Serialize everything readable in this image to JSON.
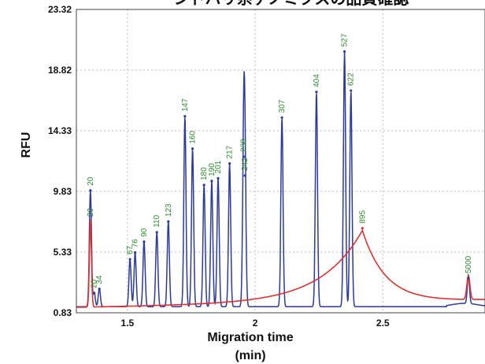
{
  "chart_data": {
    "type": "line",
    "title": "シドバリ系ゲノミクスの品質確認",
    "xlabel": "Migration time",
    "xlabel_unit": "(min)",
    "ylabel": "RFU",
    "xlim": [
      1.3,
      2.9
    ],
    "ylim": [
      0.83,
      23.32
    ],
    "x_ticks": [
      1.5,
      2,
      2.5
    ],
    "y_ticks": [
      0.83,
      5.33,
      9.83,
      14.33,
      18.82,
      23.32
    ],
    "y_tick_labels": [
      "0.83",
      "5.33",
      "9.83",
      "14.33",
      "18.82",
      "23.32"
    ],
    "x_tick_labels": [
      "1.5",
      "2",
      "2.5"
    ],
    "grid": true,
    "series": [
      {
        "name": "",
        "color": "#2b3a9b",
        "peaks": [
          {
            "x": 1.355,
            "y": 9.9,
            "label": "20"
          },
          {
            "x": 1.37,
            "y": 2.3,
            "label": "20"
          },
          {
            "x": 1.39,
            "y": 2.6,
            "label": "34"
          },
          {
            "x": 1.51,
            "y": 4.8,
            "label": "67"
          },
          {
            "x": 1.53,
            "y": 5.3,
            "label": "76"
          },
          {
            "x": 1.565,
            "y": 6.1,
            "label": "90"
          },
          {
            "x": 1.615,
            "y": 6.8,
            "label": "110"
          },
          {
            "x": 1.66,
            "y": 7.6,
            "label": "123"
          },
          {
            "x": 1.725,
            "y": 15.4,
            "label": "147"
          },
          {
            "x": 1.755,
            "y": 13.0,
            "label": "160"
          },
          {
            "x": 1.8,
            "y": 10.3,
            "label": "180"
          },
          {
            "x": 1.83,
            "y": 10.6,
            "label": "190"
          },
          {
            "x": 1.855,
            "y": 10.8,
            "label": "201"
          },
          {
            "x": 1.9,
            "y": 11.9,
            "label": "217"
          },
          {
            "x": 1.955,
            "y": 12.4,
            "label": "238"
          },
          {
            "x": 1.96,
            "y": 11.0,
            "label": "242"
          },
          {
            "x": 2.105,
            "y": 15.3,
            "label": "307"
          },
          {
            "x": 2.24,
            "y": 17.2,
            "label": "404"
          },
          {
            "x": 2.35,
            "y": 20.2,
            "label": "527"
          },
          {
            "x": 2.375,
            "y": 17.3,
            "label": "622"
          },
          {
            "x": 2.835,
            "y": 3.4,
            "label": "5000"
          }
        ]
      },
      {
        "name": "",
        "color": "#e03030",
        "peaks": [
          {
            "x": 1.355,
            "y": 7.6,
            "label": "20"
          },
          {
            "x": 2.42,
            "y": 7.1,
            "label": "895"
          },
          {
            "x": 2.835,
            "y": 3.2,
            "label": ""
          }
        ]
      }
    ]
  }
}
